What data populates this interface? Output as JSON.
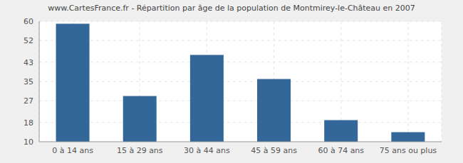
{
  "chart_data": {
    "type": "bar",
    "title": "www.CartesFrance.fr - Répartition par âge de la population de Montmirey-le-Château en 2007",
    "categories": [
      "0 à 14 ans",
      "15 à 29 ans",
      "30 à 44 ans",
      "45 à 59 ans",
      "60 à 74 ans",
      "75 ans ou plus"
    ],
    "values": [
      59,
      29,
      46,
      36,
      19,
      14
    ],
    "color": "#336699",
    "ylim": [
      10,
      60
    ],
    "yticks": [
      10,
      18,
      27,
      35,
      43,
      52,
      60
    ],
    "grid": true
  }
}
